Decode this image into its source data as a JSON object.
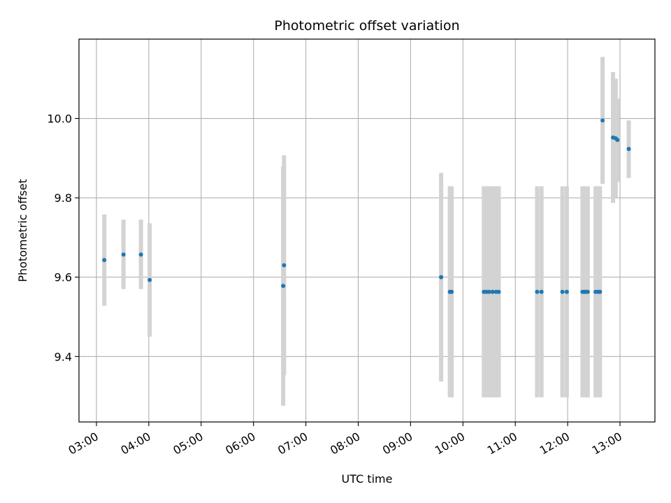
{
  "chart_data": {
    "type": "scatter",
    "title": "Photometric offset variation",
    "xlabel": "UTC time",
    "ylabel": "Photometric offset",
    "x_ticks": [
      "03:00",
      "04:00",
      "05:00",
      "06:00",
      "07:00",
      "08:00",
      "09:00",
      "10:00",
      "11:00",
      "12:00",
      "13:00"
    ],
    "y_ticks": [
      "9.4",
      "9.6",
      "9.8",
      "10.0"
    ],
    "xlim": [
      "02:40",
      "13:40"
    ],
    "ylim": [
      9.235,
      10.2
    ],
    "grid": true,
    "colors": {
      "point": "#1f77b4",
      "errorbar": "#d3d3d3",
      "grid": "#b0b0b0"
    },
    "points": [
      {
        "x": "03:09",
        "y": 9.643,
        "ylow": 9.528,
        "yhigh": 9.758
      },
      {
        "x": "03:31",
        "y": 9.657,
        "ylow": 9.57,
        "yhigh": 9.745
      },
      {
        "x": "03:51",
        "y": 9.657,
        "ylow": 9.57,
        "yhigh": 9.745
      },
      {
        "x": "04:01",
        "y": 9.593,
        "ylow": 9.45,
        "yhigh": 9.736
      },
      {
        "x": "06:34",
        "y": 9.578,
        "ylow": 9.276,
        "yhigh": 9.88
      },
      {
        "x": "06:35",
        "y": 9.63,
        "ylow": 9.353,
        "yhigh": 9.907
      },
      {
        "x": "09:35",
        "y": 9.6,
        "ylow": 9.337,
        "yhigh": 9.863
      },
      {
        "x": "09:45",
        "y": 9.563,
        "ylow": 9.297,
        "yhigh": 9.829
      },
      {
        "x": "09:47",
        "y": 9.563,
        "ylow": 9.297,
        "yhigh": 9.829
      },
      {
        "x": "10:24",
        "y": 9.563,
        "ylow": 9.297,
        "yhigh": 9.829
      },
      {
        "x": "10:27",
        "y": 9.563,
        "ylow": 9.297,
        "yhigh": 9.829
      },
      {
        "x": "10:30",
        "y": 9.563,
        "ylow": 9.297,
        "yhigh": 9.829
      },
      {
        "x": "10:34",
        "y": 9.563,
        "ylow": 9.297,
        "yhigh": 9.829
      },
      {
        "x": "10:38",
        "y": 9.563,
        "ylow": 9.297,
        "yhigh": 9.829
      },
      {
        "x": "10:41",
        "y": 9.563,
        "ylow": 9.297,
        "yhigh": 9.829
      },
      {
        "x": "11:25",
        "y": 9.563,
        "ylow": 9.297,
        "yhigh": 9.829
      },
      {
        "x": "11:30",
        "y": 9.563,
        "ylow": 9.297,
        "yhigh": 9.829
      },
      {
        "x": "11:54",
        "y": 9.563,
        "ylow": 9.297,
        "yhigh": 9.829
      },
      {
        "x": "11:59",
        "y": 9.563,
        "ylow": 9.297,
        "yhigh": 9.829
      },
      {
        "x": "12:17",
        "y": 9.563,
        "ylow": 9.297,
        "yhigh": 9.829
      },
      {
        "x": "12:19",
        "y": 9.563,
        "ylow": 9.297,
        "yhigh": 9.829
      },
      {
        "x": "12:21",
        "y": 9.563,
        "ylow": 9.297,
        "yhigh": 9.829
      },
      {
        "x": "12:23",
        "y": 9.563,
        "ylow": 9.297,
        "yhigh": 9.829
      },
      {
        "x": "12:32",
        "y": 9.563,
        "ylow": 9.297,
        "yhigh": 9.829
      },
      {
        "x": "12:35",
        "y": 9.563,
        "ylow": 9.297,
        "yhigh": 9.829
      },
      {
        "x": "12:37",
        "y": 9.563,
        "ylow": 9.297,
        "yhigh": 9.829
      },
      {
        "x": "12:40",
        "y": 9.995,
        "ylow": 9.835,
        "yhigh": 10.155
      },
      {
        "x": "12:52",
        "y": 9.952,
        "ylow": 9.787,
        "yhigh": 10.117
      },
      {
        "x": "12:55",
        "y": 9.95,
        "ylow": 9.8,
        "yhigh": 10.1
      },
      {
        "x": "12:57",
        "y": 9.946,
        "ylow": 9.84,
        "yhigh": 10.05
      },
      {
        "x": "13:10",
        "y": 9.923,
        "ylow": 9.85,
        "yhigh": 9.995
      }
    ]
  }
}
